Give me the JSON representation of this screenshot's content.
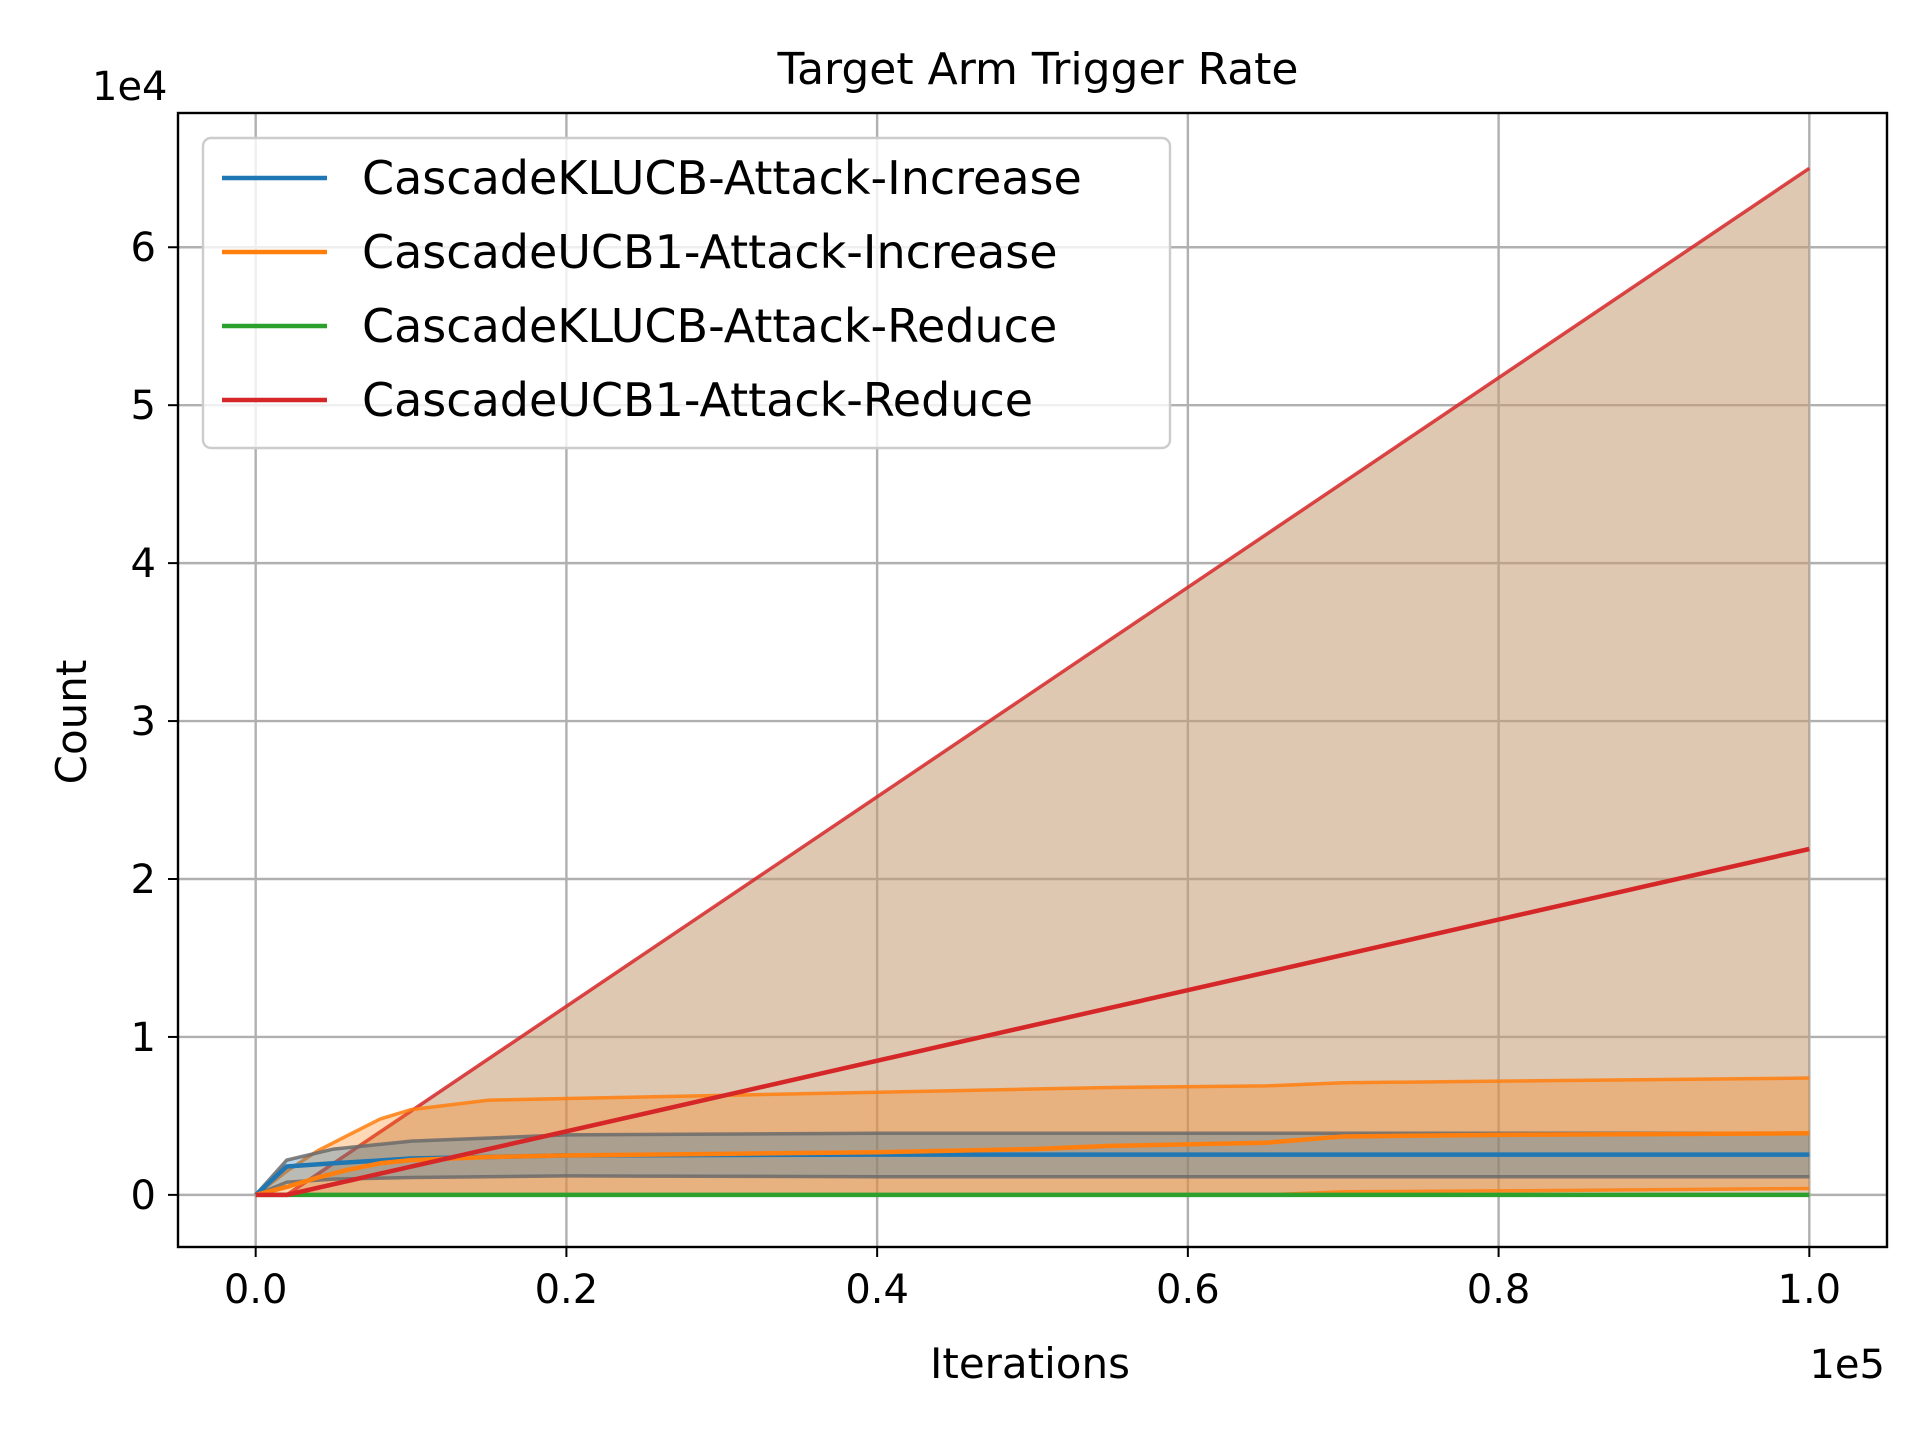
{
  "chart_data": {
    "type": "line",
    "title": "Target Arm Trigger Rate",
    "xlabel": "Iterations",
    "ylabel": "Count",
    "x_offset_label": "1e5",
    "y_offset_label": "1e4",
    "x_scale": 100000,
    "y_scale": 10000,
    "xlim": [
      -5000,
      105000
    ],
    "ylim": [
      -3300,
      68500
    ],
    "x_ticks": [
      0,
      20000,
      40000,
      60000,
      80000,
      100000
    ],
    "x_tick_labels": [
      "0.0",
      "0.2",
      "0.4",
      "0.6",
      "0.8",
      "1.0"
    ],
    "y_ticks": [
      0,
      10000,
      20000,
      30000,
      40000,
      50000,
      60000
    ],
    "y_tick_labels": [
      "0",
      "1",
      "2",
      "3",
      "4",
      "5",
      "6"
    ],
    "grid": true,
    "legend_position": "upper-left",
    "series": [
      {
        "name": "CascadeKLUCB-Attack-Increase",
        "color": "#1f77b4",
        "x": [
          0,
          2000,
          5000,
          10000,
          20000,
          40000,
          60000,
          80000,
          100000
        ],
        "y": [
          0,
          1800,
          2000,
          2300,
          2500,
          2550,
          2550,
          2550,
          2550
        ],
        "band_upper": [
          0,
          2200,
          2900,
          3400,
          3800,
          3900,
          3900,
          3900,
          3900
        ],
        "band_lower": [
          0,
          800,
          1000,
          1100,
          1200,
          1150,
          1150,
          1150,
          1150
        ],
        "band_color": "#1f77b4"
      },
      {
        "name": "CascadeUCB1-Attack-Increase",
        "color": "#ff7f0e",
        "x": [
          0,
          2000,
          4000,
          6000,
          8000,
          10000,
          15000,
          20000,
          30000,
          40000,
          50000,
          55000,
          65000,
          70000,
          80000,
          100000
        ],
        "y": [
          0,
          500,
          1100,
          1600,
          2000,
          2200,
          2400,
          2500,
          2600,
          2700,
          2900,
          3100,
          3300,
          3700,
          3800,
          3900
        ],
        "band_upper": [
          0,
          1500,
          2800,
          3800,
          4800,
          5400,
          6000,
          6100,
          6300,
          6500,
          6700,
          6800,
          6900,
          7100,
          7200,
          7400
        ],
        "band_lower": [
          0,
          0,
          0,
          0,
          0,
          0,
          0,
          0,
          0,
          0,
          0,
          0,
          0,
          200,
          250,
          400
        ],
        "band_color": "#ff7f0e"
      },
      {
        "name": "CascadeKLUCB-Attack-Reduce",
        "color": "#2ca02c",
        "x": [
          0,
          100000
        ],
        "y": [
          0,
          0
        ]
      },
      {
        "name": "CascadeUCB1-Attack-Reduce",
        "color": "#d62728",
        "x": [
          0,
          2000,
          100000
        ],
        "y": [
          0,
          0,
          21900
        ],
        "band_upper": [
          0,
          0,
          65000
        ],
        "band_lower": [
          0,
          0,
          0
        ],
        "band_color": "#c49a72"
      }
    ]
  }
}
